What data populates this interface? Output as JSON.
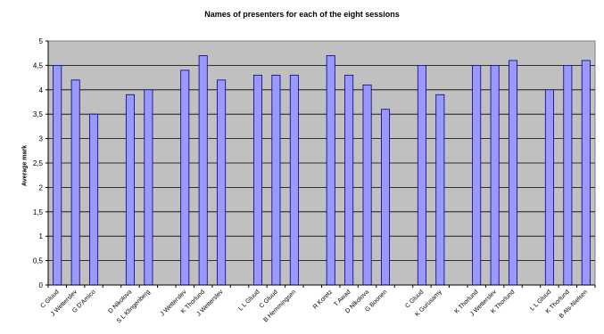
{
  "chart_data": {
    "type": "bar",
    "title": "Names of presenters for each of the eight sessions",
    "xlabel": "",
    "ylabel": "Average mark",
    "ylim": [
      0,
      5
    ],
    "yticks": [
      "0",
      "0,5",
      "1",
      "1,5",
      "2",
      "2,5",
      "3",
      "3,5",
      "4",
      "4,5",
      "5"
    ],
    "grid": true,
    "legend": "none",
    "colors": {
      "bar_fill": "#9999ff",
      "bar_stroke": "#000080",
      "plot_bg": "#c0c0c0",
      "grid": "#000000"
    },
    "categories": [
      "C Gluud",
      "J Wetterslev",
      "G D'Amico",
      "",
      "D Nikolova",
      "S L Klingenberg",
      "",
      "J Wetterslev",
      "K Thorlund",
      "J Wetterslev",
      "",
      "L L Gluud",
      "C Gluud",
      "B Hemmingsen",
      "",
      "R Koretz",
      "T Awad",
      "D Nikolova",
      "G Boonen",
      "",
      "C Gluud",
      "K Gurusamy",
      "",
      "K Thorlund",
      "J Wetterslev",
      "K Thorlund",
      "",
      "L L Gluud",
      "K Thorlund",
      "B Als-Nielsen"
    ],
    "values": [
      4.5,
      4.2,
      3.5,
      null,
      3.9,
      4.0,
      null,
      4.4,
      4.7,
      4.2,
      null,
      4.3,
      4.3,
      4.3,
      null,
      4.7,
      4.3,
      4.1,
      3.6,
      null,
      4.5,
      3.9,
      null,
      4.5,
      4.5,
      4.6,
      null,
      4.0,
      4.5,
      4.6
    ]
  }
}
